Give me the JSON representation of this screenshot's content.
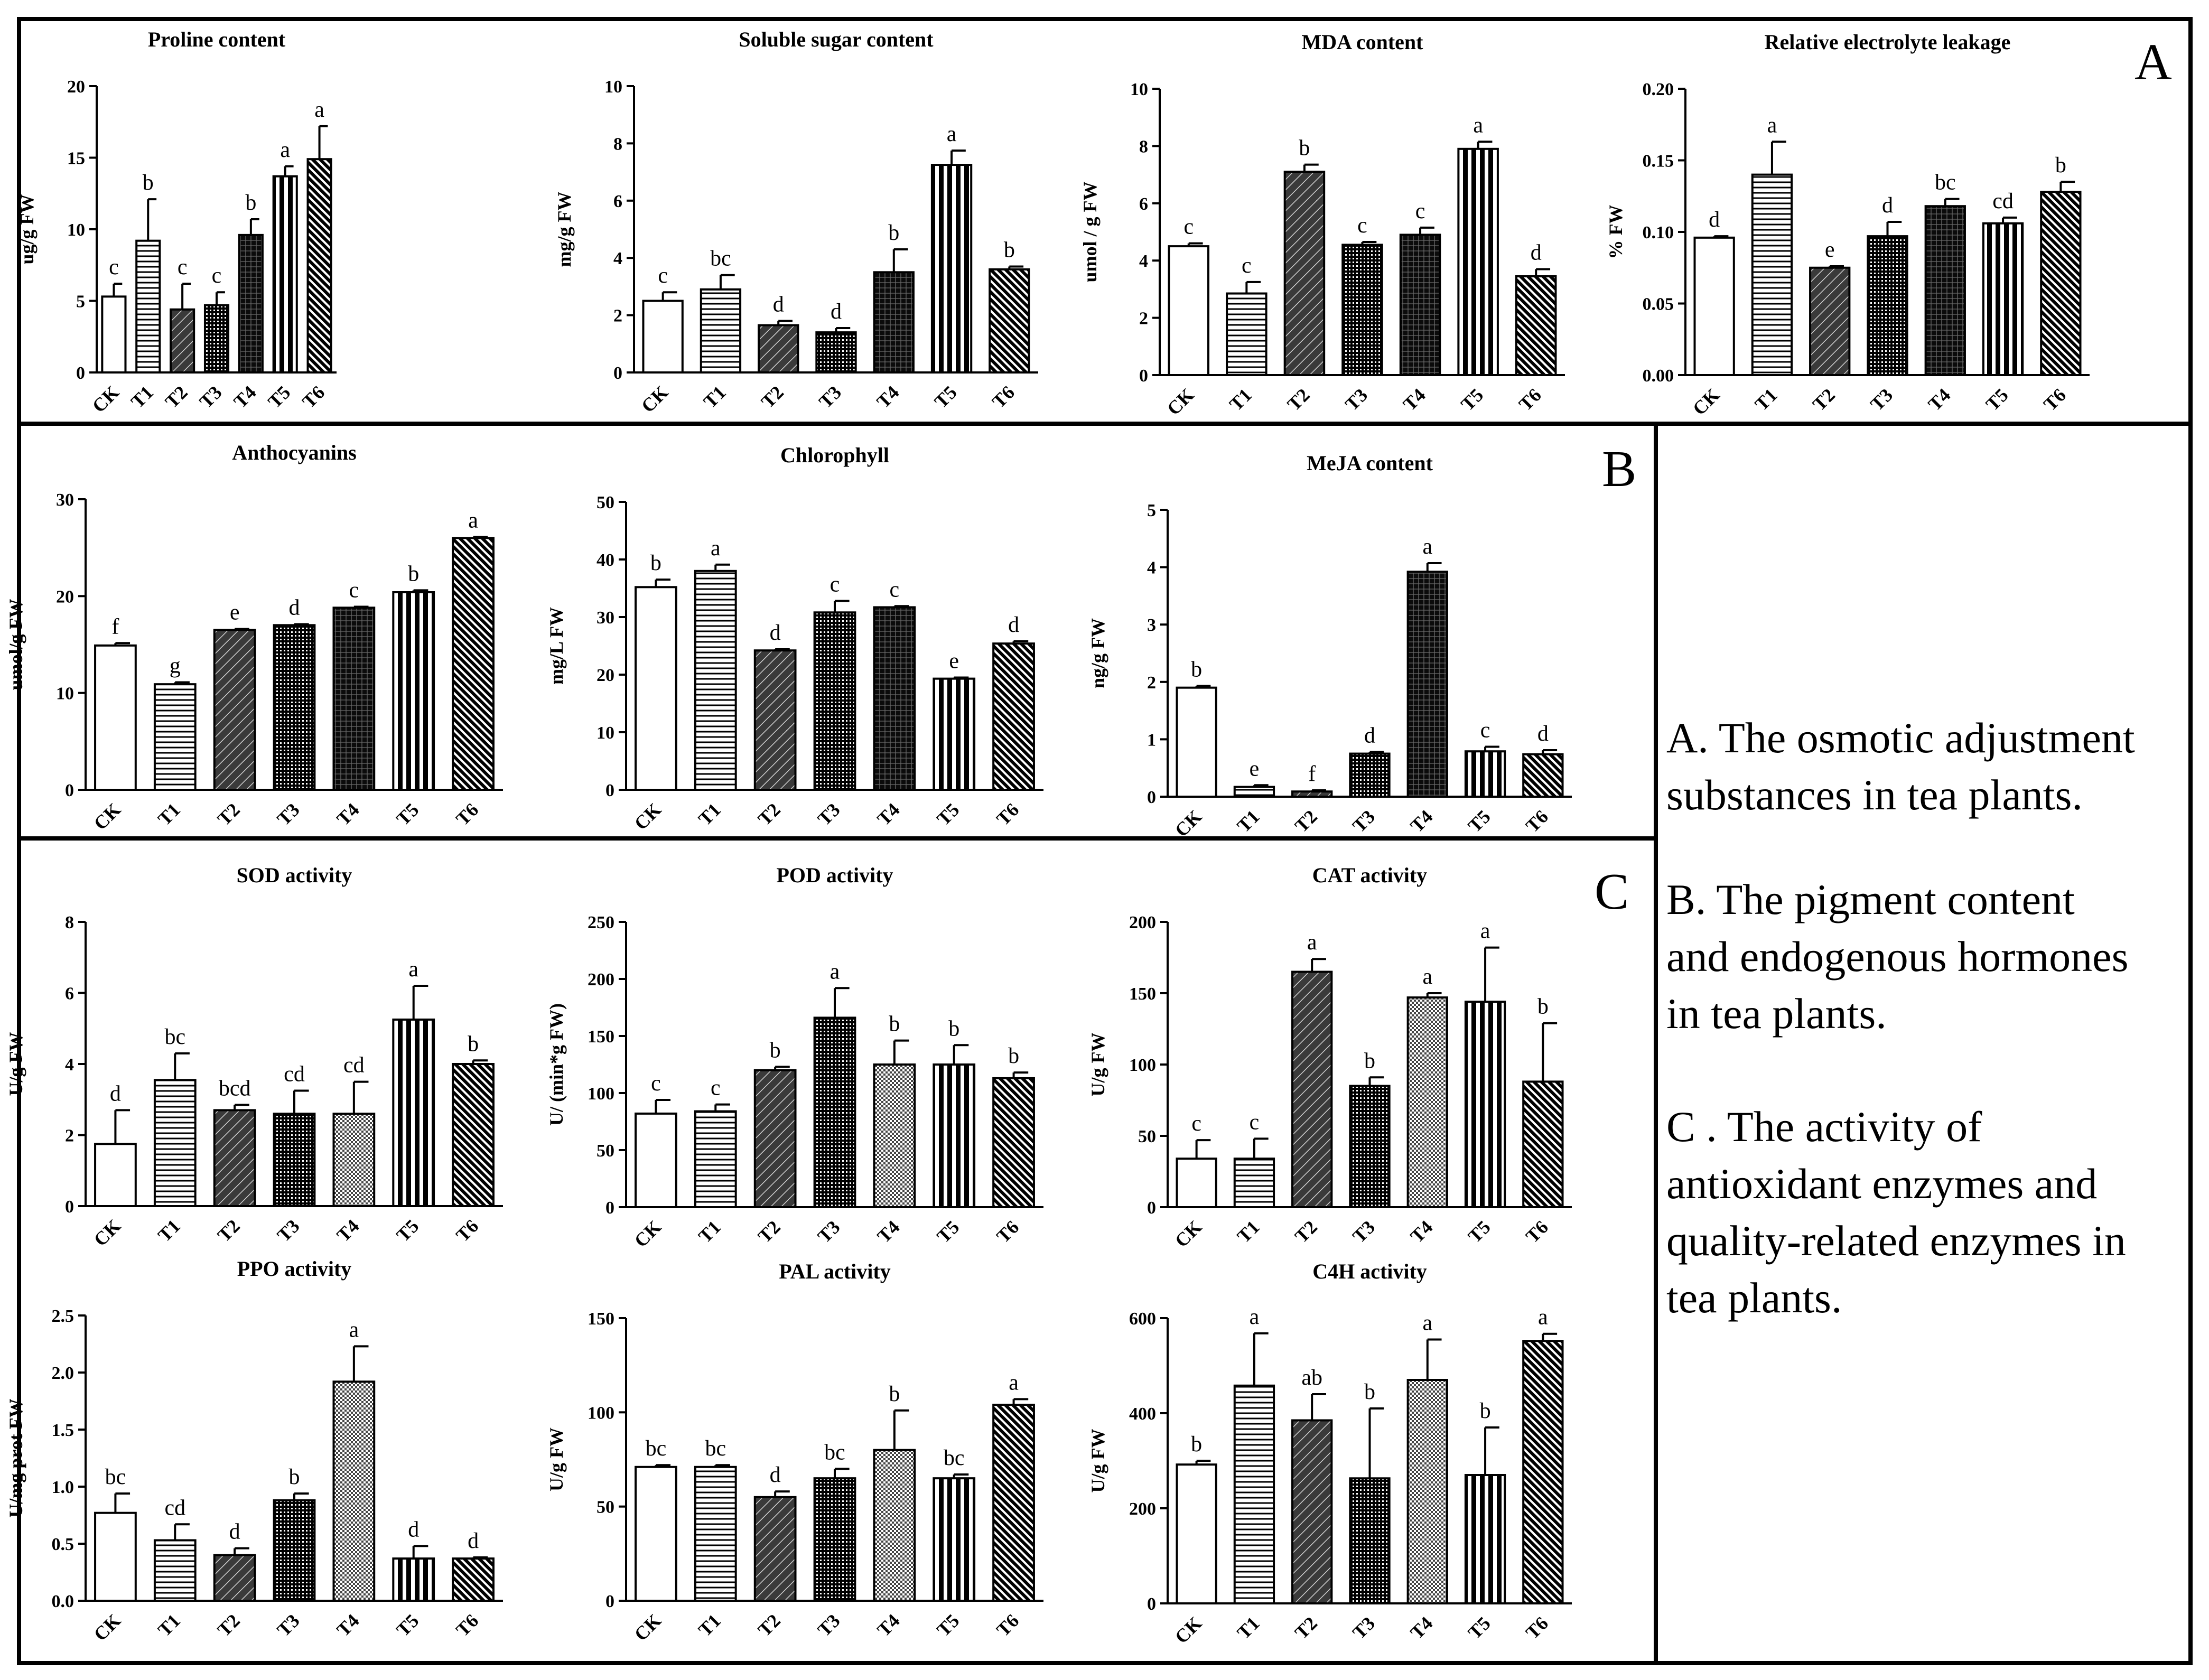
{
  "panels": {
    "A": {
      "label": "A",
      "description": "A. The osmotic adjustment substances in tea plants."
    },
    "B": {
      "label": "B",
      "description": "B. The pigment content and endogenous hormones in tea plants."
    },
    "C": {
      "label": "C",
      "description": "C . The activity of antioxidant enzymes and quality-related enzymes in tea plants."
    }
  },
  "legend_lines": [
    [
      "A. The osmotic adjustment",
      "substances in tea plants."
    ],
    [
      "B. The pigment content",
      "and endogenous hormones",
      "in tea plants."
    ],
    [
      "C . The activity of",
      "antioxidant enzymes and",
      "quality-related enzymes in",
      "tea plants."
    ]
  ],
  "colors": {
    "ink": "#000000",
    "paper": "#ffffff"
  },
  "chart_data": [
    {
      "type": "bar",
      "panel": "A",
      "title": "Proline content",
      "ylabel": "ug/g FW",
      "categories": [
        "CK",
        "T1",
        "T2",
        "T3",
        "T4",
        "T5",
        "T6"
      ],
      "values": [
        5.3,
        9.2,
        4.4,
        4.7,
        9.6,
        13.7,
        14.9
      ],
      "errors": [
        0.9,
        2.9,
        1.8,
        0.9,
        1.1,
        0.7,
        2.3
      ],
      "letters": [
        "c",
        "b",
        "c",
        "c",
        "b",
        "a",
        "a"
      ],
      "ylim": [
        0,
        20
      ],
      "yticks": [
        "0",
        "5",
        "10",
        "15",
        "20"
      ]
    },
    {
      "type": "bar",
      "panel": "A",
      "title": "Soluble sugar content",
      "ylabel": "mg/g FW",
      "categories": [
        "CK",
        "T1",
        "T2",
        "T3",
        "T4",
        "T5",
        "T6"
      ],
      "values": [
        2.5,
        2.9,
        1.65,
        1.4,
        3.5,
        7.25,
        3.6
      ],
      "errors": [
        0.3,
        0.5,
        0.15,
        0.15,
        0.8,
        0.5,
        0.1
      ],
      "letters": [
        "c",
        "bc",
        "d",
        "d",
        "b",
        "a",
        "b"
      ],
      "ylim": [
        0,
        10
      ],
      "yticks": [
        "0",
        "2",
        "4",
        "6",
        "8",
        "10"
      ]
    },
    {
      "type": "bar",
      "panel": "A",
      "title": "MDA content",
      "ylabel": "umol / g FW",
      "categories": [
        "CK",
        "T1",
        "T2",
        "T3",
        "T4",
        "T5",
        "T6"
      ],
      "values": [
        4.5,
        2.85,
        7.1,
        4.55,
        4.9,
        7.9,
        3.45
      ],
      "errors": [
        0.1,
        0.4,
        0.25,
        0.1,
        0.25,
        0.25,
        0.25
      ],
      "letters": [
        "c",
        "c",
        "b",
        "c",
        "c",
        "a",
        "d"
      ],
      "ylim": [
        0,
        10
      ],
      "yticks": [
        "0",
        "2",
        "4",
        "6",
        "8",
        "10"
      ]
    },
    {
      "type": "bar",
      "panel": "A",
      "title": "Relative electrolyte leakage",
      "ylabel": "% FW",
      "categories": [
        "CK",
        "T1",
        "T2",
        "T3",
        "T4",
        "T5",
        "T6"
      ],
      "values": [
        0.096,
        0.14,
        0.075,
        0.097,
        0.118,
        0.106,
        0.128
      ],
      "errors": [
        0.001,
        0.023,
        0.001,
        0.01,
        0.005,
        0.004,
        0.007
      ],
      "letters": [
        "d",
        "a",
        "e",
        "d",
        "bc",
        "cd",
        "b"
      ],
      "ylim": [
        0,
        0.2
      ],
      "yticks": [
        "0.00",
        "0.05",
        "0.10",
        "0.15",
        "0.20"
      ]
    },
    {
      "type": "bar",
      "panel": "B",
      "title": "Anthocyanins",
      "ylabel": "umol/g FW",
      "categories": [
        "CK",
        "T1",
        "T2",
        "T3",
        "T4",
        "T5",
        "T6"
      ],
      "values": [
        14.9,
        10.9,
        16.5,
        17.0,
        18.8,
        20.4,
        26.0
      ],
      "errors": [
        0.25,
        0.2,
        0.1,
        0.1,
        0.1,
        0.2,
        0.1
      ],
      "letters": [
        "f",
        "g",
        "e",
        "d",
        "c",
        "b",
        "a"
      ],
      "ylim": [
        0,
        30
      ],
      "yticks": [
        "0",
        "10",
        "20",
        "30"
      ]
    },
    {
      "type": "bar",
      "panel": "B",
      "title": "Chlorophyll",
      "ylabel": "mg/L FW",
      "categories": [
        "CK",
        "T1",
        "T2",
        "T3",
        "T4",
        "T5",
        "T6"
      ],
      "values": [
        35.2,
        38.0,
        24.2,
        30.8,
        31.7,
        19.3,
        25.4
      ],
      "errors": [
        1.3,
        1.1,
        0.2,
        2.0,
        0.2,
        0.2,
        0.4
      ],
      "letters": [
        "b",
        "a",
        "d",
        "c",
        "c",
        "e",
        "d"
      ],
      "ylim": [
        0,
        50
      ],
      "yticks": [
        "0",
        "10",
        "20",
        "30",
        "40",
        "50"
      ]
    },
    {
      "type": "bar",
      "panel": "B",
      "title": "MeJA content",
      "ylabel": "ng/g FW",
      "categories": [
        "CK",
        "T1",
        "T2",
        "T3",
        "T4",
        "T5",
        "T6"
      ],
      "values": [
        1.9,
        0.17,
        0.09,
        0.75,
        3.92,
        0.79,
        0.74
      ],
      "errors": [
        0.03,
        0.03,
        0.02,
        0.03,
        0.15,
        0.08,
        0.07
      ],
      "letters": [
        "b",
        "e",
        "f",
        "d",
        "a",
        "c",
        "d"
      ],
      "ylim": [
        0,
        5
      ],
      "yticks": [
        "0",
        "1",
        "2",
        "3",
        "4",
        "5"
      ]
    },
    {
      "type": "bar",
      "panel": "C",
      "title": "SOD activity",
      "ylabel": "U/g FW",
      "categories": [
        "CK",
        "T1",
        "T2",
        "T3",
        "T4",
        "T5",
        "T6"
      ],
      "values": [
        1.75,
        3.55,
        2.7,
        2.6,
        2.6,
        5.25,
        4.0
      ],
      "errors": [
        0.95,
        0.75,
        0.15,
        0.65,
        0.9,
        0.95,
        0.1
      ],
      "letters": [
        "d",
        "bc",
        "bcd",
        "cd",
        "cd",
        "a",
        "b"
      ],
      "ylim": [
        0,
        8
      ],
      "yticks": [
        "0",
        "2",
        "4",
        "6",
        "8"
      ]
    },
    {
      "type": "bar",
      "panel": "C",
      "title": "POD activity",
      "ylabel": "U/ (min*g FW)",
      "categories": [
        "CK",
        "T1",
        "T2",
        "T3",
        "T4",
        "T5",
        "T6"
      ],
      "values": [
        82,
        84,
        120,
        166,
        125,
        125,
        113
      ],
      "errors": [
        12,
        6,
        3,
        26,
        21,
        17,
        5
      ],
      "letters": [
        "c",
        "c",
        "b",
        "a",
        "b",
        "b",
        "b"
      ],
      "ylim": [
        0,
        250
      ],
      "yticks": [
        "0",
        "50",
        "100",
        "150",
        "200",
        "250"
      ]
    },
    {
      "type": "bar",
      "panel": "C",
      "title": "CAT activity",
      "ylabel": "U/g FW",
      "categories": [
        "CK",
        "T1",
        "T2",
        "T3",
        "T4",
        "T5",
        "T6"
      ],
      "values": [
        34,
        34,
        165,
        85,
        147,
        144,
        88
      ],
      "errors": [
        13,
        14,
        9,
        6,
        3,
        38,
        41
      ],
      "letters": [
        "c",
        "c",
        "a",
        "b",
        "a",
        "a",
        "b"
      ],
      "ylim": [
        0,
        200
      ],
      "yticks": [
        "0",
        "50",
        "100",
        "150",
        "200"
      ]
    },
    {
      "type": "bar",
      "panel": "C",
      "title": "PPO activity",
      "ylabel": "U/mg prot FW",
      "categories": [
        "CK",
        "T1",
        "T2",
        "T3",
        "T4",
        "T5",
        "T6"
      ],
      "values": [
        0.77,
        0.53,
        0.4,
        0.88,
        1.92,
        0.37,
        0.37
      ],
      "errors": [
        0.17,
        0.14,
        0.06,
        0.06,
        0.31,
        0.11,
        0.01
      ],
      "letters": [
        "bc",
        "cd",
        "d",
        "b",
        "a",
        "d",
        "d"
      ],
      "ylim": [
        0,
        2.5
      ],
      "yticks": [
        "0.0",
        "0.5",
        "1.0",
        "1.5",
        "2.0",
        "2.5"
      ]
    },
    {
      "type": "bar",
      "panel": "C",
      "title": "PAL activity",
      "ylabel": "U/g FW",
      "categories": [
        "CK",
        "T1",
        "T2",
        "T3",
        "T4",
        "T5",
        "T6"
      ],
      "values": [
        71,
        71,
        55,
        65,
        80,
        65,
        104
      ],
      "errors": [
        1,
        1,
        3,
        5,
        21,
        2,
        3
      ],
      "letters": [
        "bc",
        "bc",
        "d",
        "bc",
        "b",
        "bc",
        "a"
      ],
      "ylim": [
        0,
        150
      ],
      "yticks": [
        "0",
        "50",
        "100",
        "150"
      ]
    },
    {
      "type": "bar",
      "panel": "C",
      "title": "C4H activity",
      "ylabel": "U/g FW",
      "categories": [
        "CK",
        "T1",
        "T2",
        "T3",
        "T4",
        "T5",
        "T6"
      ],
      "values": [
        292,
        458,
        385,
        263,
        470,
        270,
        552
      ],
      "errors": [
        8,
        110,
        55,
        147,
        85,
        100,
        15
      ],
      "letters": [
        "b",
        "a",
        "ab",
        "b",
        "a",
        "b",
        "a"
      ],
      "ylim": [
        0,
        600
      ],
      "yticks": [
        "0",
        "200",
        "400",
        "600"
      ]
    }
  ]
}
